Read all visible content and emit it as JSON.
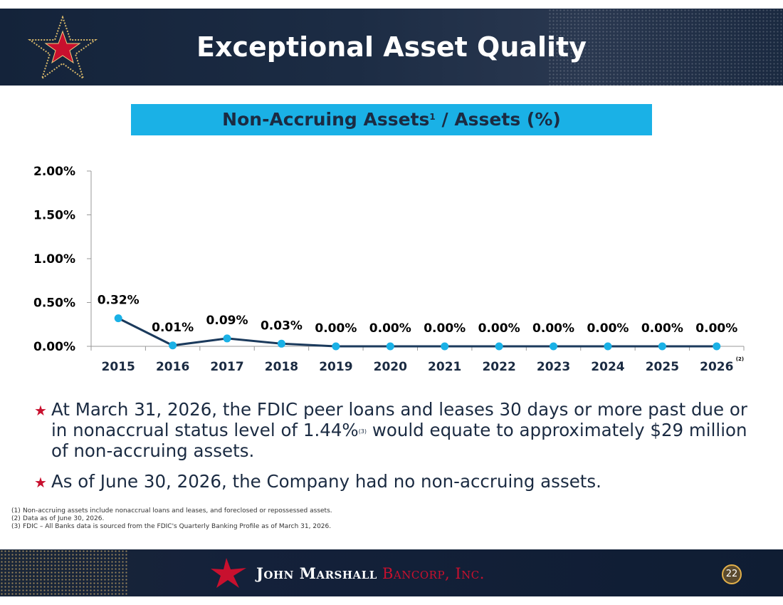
{
  "header": {
    "title": "Exceptional Asset Quality"
  },
  "chart_title": {
    "main": "Non-Accruing Assets",
    "sup": "1",
    "rest": " / Assets (%)"
  },
  "chart_data": {
    "type": "line",
    "categories": [
      "2015",
      "2016",
      "2017",
      "2018",
      "2019",
      "2020",
      "2021",
      "2022",
      "2023",
      "2024",
      "2025",
      "2026"
    ],
    "category_notes": [
      "",
      "",
      "",
      "",
      "",
      "",
      "",
      "",
      "",
      "",
      "",
      "(2)"
    ],
    "values": [
      0.32,
      0.01,
      0.09,
      0.03,
      0.0,
      0.0,
      0.0,
      0.0,
      0.0,
      0.0,
      0.0,
      0.0
    ],
    "data_labels": [
      "0.32%",
      "0.01%",
      "0.09%",
      "0.03%",
      "0.00%",
      "0.00%",
      "0.00%",
      "0.00%",
      "0.00%",
      "0.00%",
      "0.00%",
      "0.00%"
    ],
    "y_ticks": [
      0,
      0.5,
      1.0,
      1.5,
      2.0
    ],
    "y_tick_labels": [
      "0.00%",
      "0.50%",
      "1.00%",
      "1.50%",
      "2.00%"
    ],
    "ylim": [
      0,
      2.0
    ],
    "grid": false,
    "line_color": "#1b3a5c",
    "marker_color": "#1ab1e6"
  },
  "bullets": [
    {
      "text_before": "At March 31, 2026, the FDIC peer loans and leases 30 days or more past due or in nonaccrual status level of 1.44%",
      "sup": "(3)",
      "text_after": " would equate to approximately $29 million of non-accruing assets."
    },
    {
      "text_before": "As of June 30, 2026, the Company had no non-accruing assets.",
      "sup": "",
      "text_after": ""
    }
  ],
  "footnotes": [
    {
      "num": "(1)",
      "text": "Non-accruing assets include nonaccrual loans and leases, and foreclosed or repossessed assets."
    },
    {
      "num": "(2)",
      "text": "Data as of June 30, 2026."
    },
    {
      "num": "(3)",
      "text": "FDIC – All Banks data is sourced from the FDIC's Quarterly Banking Profile as of March 31, 2026."
    }
  ],
  "footer": {
    "company_main": "John Marshall",
    "company_sub": "Bancorp, Inc.",
    "page_number": "22"
  },
  "colors": {
    "header_bg": "#14233a",
    "title_bar": "#1ab1e6",
    "accent_red": "#c8102e",
    "text_navy": "#1b2b42"
  }
}
